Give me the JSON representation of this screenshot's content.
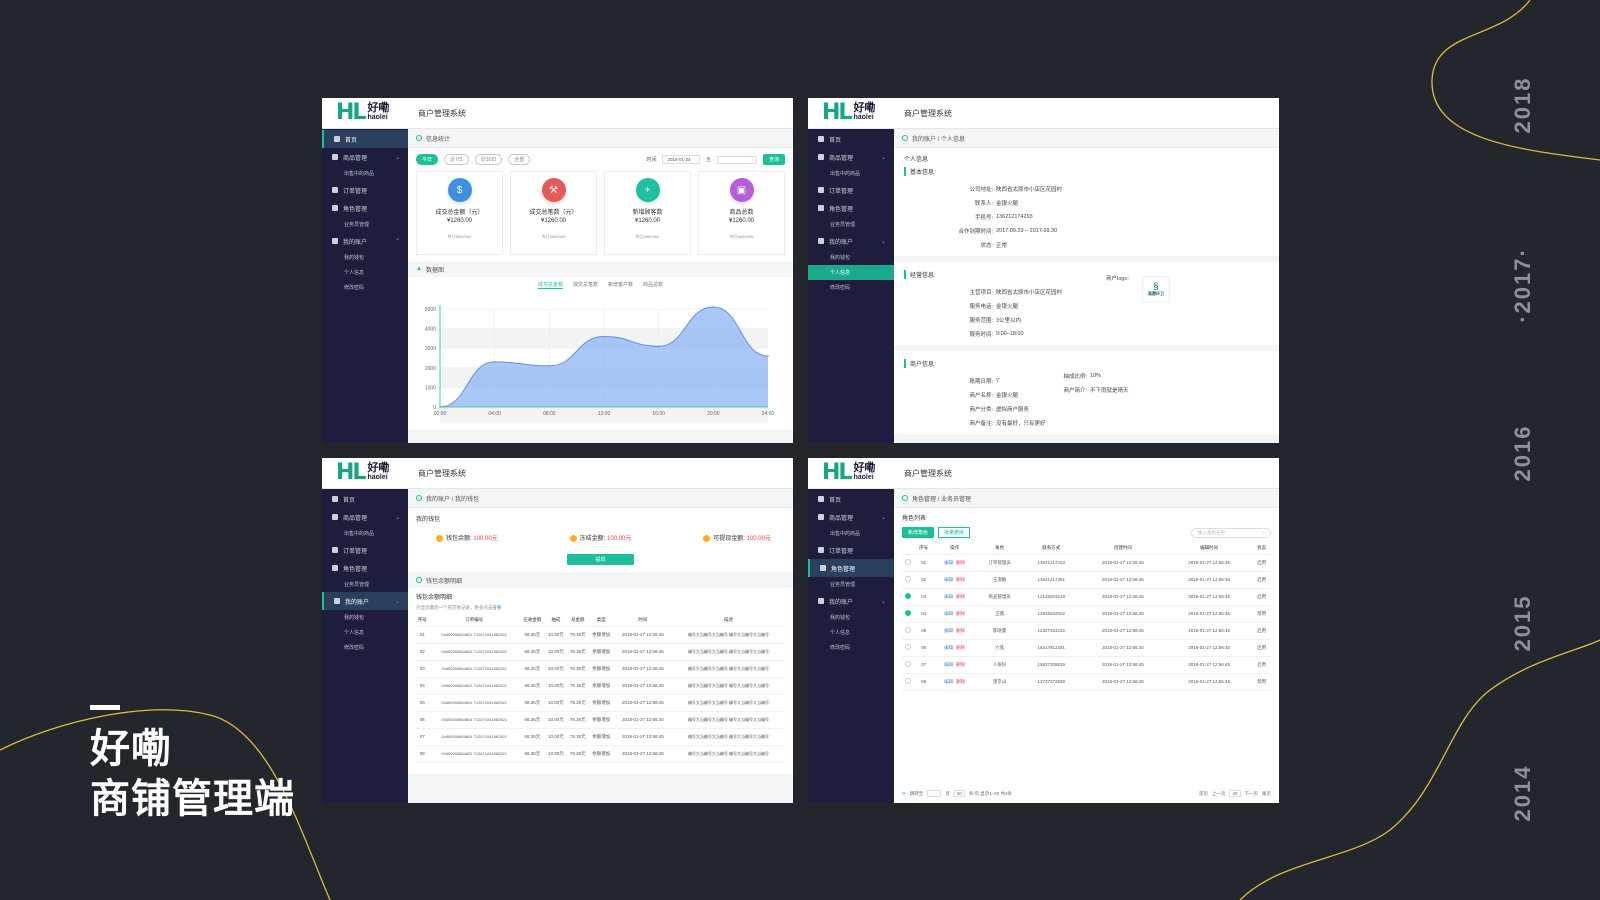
{
  "years": [
    "2018",
    "·2017·",
    "2016",
    "2015",
    "2014"
  ],
  "brand": {
    "line1": "好嘞",
    "line2": "商铺管理端"
  },
  "app": {
    "logo_main": "HL",
    "logo_cn": "好嘞",
    "logo_en": "haolei",
    "system_title": "商户管理系统"
  },
  "colors": {
    "accent": "#1dbf9a",
    "sidebar": "#1f1d3d",
    "background": "#23272d",
    "curve": "#e2b93b"
  },
  "nav": {
    "home": "首页",
    "goods": "商品管理",
    "goods_sub": "出售中的商品",
    "orders": "订单管理",
    "roles": "角色管理",
    "roles_sub": "业务员管理",
    "account": "我的账户",
    "account_sub1": "我的钱包",
    "account_sub2": "个人信息",
    "account_sub3": "修改密码"
  },
  "panel1": {
    "crumb": "信息统计",
    "filters": [
      "今日",
      "近7日",
      "近30日",
      "全部"
    ],
    "time_label": "时间",
    "date_from": "2018-01-24",
    "date_sep": "至",
    "query": "查询",
    "stats": [
      {
        "title": "成交总金额（元）",
        "value": "¥1260.00",
        "compare": "昨日5865365",
        "icon": "money-bag-icon"
      },
      {
        "title": "成交总笔数（元）",
        "value": "¥1260.00",
        "compare": "昨日5865365",
        "icon": "gavel-icon"
      },
      {
        "title": "新增顾客数",
        "value": "¥1260.00",
        "compare": "昨日5865365",
        "icon": "add-user-icon"
      },
      {
        "title": "商品总数",
        "value": "¥1260.00",
        "compare": "昨日5865365",
        "icon": "basket-icon"
      }
    ],
    "chart_section": "数据图",
    "chart_tabs": [
      "成交总金额",
      "成交总笔数",
      "新增客户数",
      "商品总数"
    ]
  },
  "chart_data": {
    "type": "area",
    "x": [
      "00:00",
      "04:00",
      "08:00",
      "12:00",
      "16:00",
      "20:00",
      "24:00"
    ],
    "values": [
      0,
      2300,
      2100,
      3600,
      3100,
      5100,
      2600
    ],
    "ylim": [
      0,
      5000
    ],
    "yticks": [
      "5000",
      "4000",
      "3000",
      "2000",
      "1000",
      "0"
    ],
    "grid": true
  },
  "panel2": {
    "crumb": "我的账户 / 个人信息",
    "title": "个人信息",
    "basic_h": "基本信息:",
    "basic": [
      {
        "k": "公司地址:",
        "v": "陕西省太原市小店区花园村"
      },
      {
        "k": "联系人:",
        "v": "金银火腿"
      },
      {
        "k": "手机号:",
        "v": "136212174293"
      },
      {
        "k": "合作到期时间:",
        "v": "2017.09.29 – 2017.09.30"
      },
      {
        "k": "状态:",
        "v": "正常"
      }
    ],
    "biz_h": "经营信息:",
    "biz": [
      {
        "k": "主营项目:",
        "v": "陕西省太原市小店区花园村"
      },
      {
        "k": "服务电话:",
        "v": "金银火腿"
      },
      {
        "k": "服务范围:",
        "v": "3公里以内"
      },
      {
        "k": "服务时间:",
        "v": "9:00–18:00"
      }
    ],
    "logo_label": "商户logo:",
    "logo_name": "桑腾环卫",
    "merchant_h": "商户信息:",
    "merchant_left": [
      {
        "k": "账期日期:",
        "v": "7"
      },
      {
        "k": "商户名称:",
        "v": "金银火腿"
      },
      {
        "k": "商户分类:",
        "v": "虚拟商户服务"
      },
      {
        "k": "商户备注:",
        "v": "没有最好，只有更好"
      }
    ],
    "merchant_right": [
      {
        "k": "抽成比例:",
        "v": "10%"
      },
      {
        "k": "商户简介:",
        "v": "不下雨就是晴天"
      }
    ]
  },
  "panel3": {
    "crumb": "我的账户 / 我的钱包",
    "title": "我的钱包",
    "wallet": [
      {
        "k": "钱包余额:",
        "v": "100.00元"
      },
      {
        "k": "冻结金额:",
        "v": "100.00元"
      },
      {
        "k": "可提现金额:",
        "v": "100.00元"
      }
    ],
    "withdraw": "提现",
    "detail_section": "钱包余额明细",
    "detail_title": "钱包余额明细",
    "hint": "只显示最近一个月交易记录，更多点击",
    "hint_link": "查看",
    "headers": [
      "序号",
      "订单编号",
      "应收金额",
      "抽成",
      "总金额",
      "类型",
      "时间",
      "描述"
    ],
    "rows": [
      [
        "01",
        "04450000654801 712071041562521",
        "68.35元",
        "10.00元",
        "78.35元",
        "余额增加",
        "2018-01-27 12:56:45",
        "编号大当编号大当编号 编号大当编号大当编号"
      ],
      [
        "02",
        "04450000654801 712071041562521",
        "68.35元",
        "10.00元",
        "78.35元",
        "余额增加",
        "2018-01-27 12:56:45",
        "编号大当编号大当编号 编号大当编号大当编号"
      ],
      [
        "03",
        "04450000654801 712071041562521",
        "68.35元",
        "10.00元",
        "78.35元",
        "余额增加",
        "2018-01-27 12:56:45",
        "编号大当编号大当编号 编号大当编号大当编号"
      ],
      [
        "04",
        "04450000654801 712071041562521",
        "68.35元",
        "10.00元",
        "78.35元",
        "余额增加",
        "2018-01-27 12:56:45",
        "编号大当编号大当编号 编号大当编号大当编号"
      ],
      [
        "05",
        "04450000654801 712071041562521",
        "68.35元",
        "10.00元",
        "78.35元",
        "余额增加",
        "2018-01-27 12:56:45",
        "编号大当编号大当编号 编号大当编号大当编号"
      ],
      [
        "06",
        "04450000654801 712071041562521",
        "68.35元",
        "10.00元",
        "78.35元",
        "余额增加",
        "2018-01-27 12:56:45",
        "编号大当编号大当编号 编号大当编号大当编号"
      ],
      [
        "07",
        "04450000654801 712071041562521",
        "68.35元",
        "10.00元",
        "78.35元",
        "余额增加",
        "2018-01-27 12:56:45",
        "编号大当编号大当编号 编号大当编号大当编号"
      ],
      [
        "08",
        "04450000654801 712071041562521",
        "68.35元",
        "10.00元",
        "78.35元",
        "余额增加",
        "2018-01-27 12:56:45",
        "编号大当编号大当编号 编号大当编号大当编号"
      ]
    ]
  },
  "panel4": {
    "crumb": "角色管理 / 业务员管理",
    "title": "角色列表",
    "add": "新增角色",
    "batch_delete": "批量删除",
    "search_placeholder": "输入角色名称",
    "headers": [
      "序号",
      "操作",
      "角色",
      "联系方式",
      "创建时间",
      "编辑时间",
      "状态"
    ],
    "edit": "编辑",
    "del": "删除",
    "rows": [
      {
        "no": "01",
        "role": "订单管理员",
        "phone": "13621217410",
        "created": "2018-01-27 12:56:45",
        "edited": "2018-01-27 12:56:45",
        "status": "启用",
        "checked": false
      },
      {
        "no": "02",
        "role": "王淑敏",
        "phone": "13621217391",
        "created": "2018-01-27 12:56:45",
        "edited": "2018-01-27 12:56:45",
        "status": "启用",
        "checked": false
      },
      {
        "no": "03",
        "role": "商品管理员",
        "phone": "12128203219",
        "created": "2018-01-27 12:56:45",
        "edited": "2018-01-27 12:56:45",
        "status": "启用",
        "checked": true
      },
      {
        "no": "04",
        "role": "王薇",
        "phone": "13826332022",
        "created": "2018-01-27 12:56:45",
        "edited": "2018-01-27 12:56:45",
        "status": "禁用",
        "checked": true
      },
      {
        "no": "05",
        "role": "陈晓曼",
        "phone": "12327324242",
        "created": "2018-01-27 12:56:45",
        "edited": "2018-01-27 12:56:45",
        "status": "启用",
        "checked": false
      },
      {
        "no": "06",
        "role": "六弦",
        "phone": "16217912391",
        "created": "2018-01-27 12:56:45",
        "edited": "2018-01-27 12:56:45",
        "status": "启用",
        "checked": false
      },
      {
        "no": "07",
        "role": "人很好",
        "phone": "15837328629",
        "created": "2018-01-27 12:56:45",
        "edited": "2018-01-27 12:56:45",
        "status": "启用",
        "checked": false
      },
      {
        "no": "08",
        "role": "望京山",
        "phone": "13737372839",
        "created": "2018-01-27 12:56:45",
        "edited": "2018-01-27 12:56:45",
        "status": "禁用",
        "checked": false
      }
    ],
    "pager": {
      "jump": "跳转至",
      "page_unit": "页",
      "page_size": "20",
      "summary": "条/页 显示1–20 共3条",
      "first": "首页",
      "prev": "上一页",
      "current": "20",
      "next": "下一页",
      "last": "尾页"
    }
  }
}
